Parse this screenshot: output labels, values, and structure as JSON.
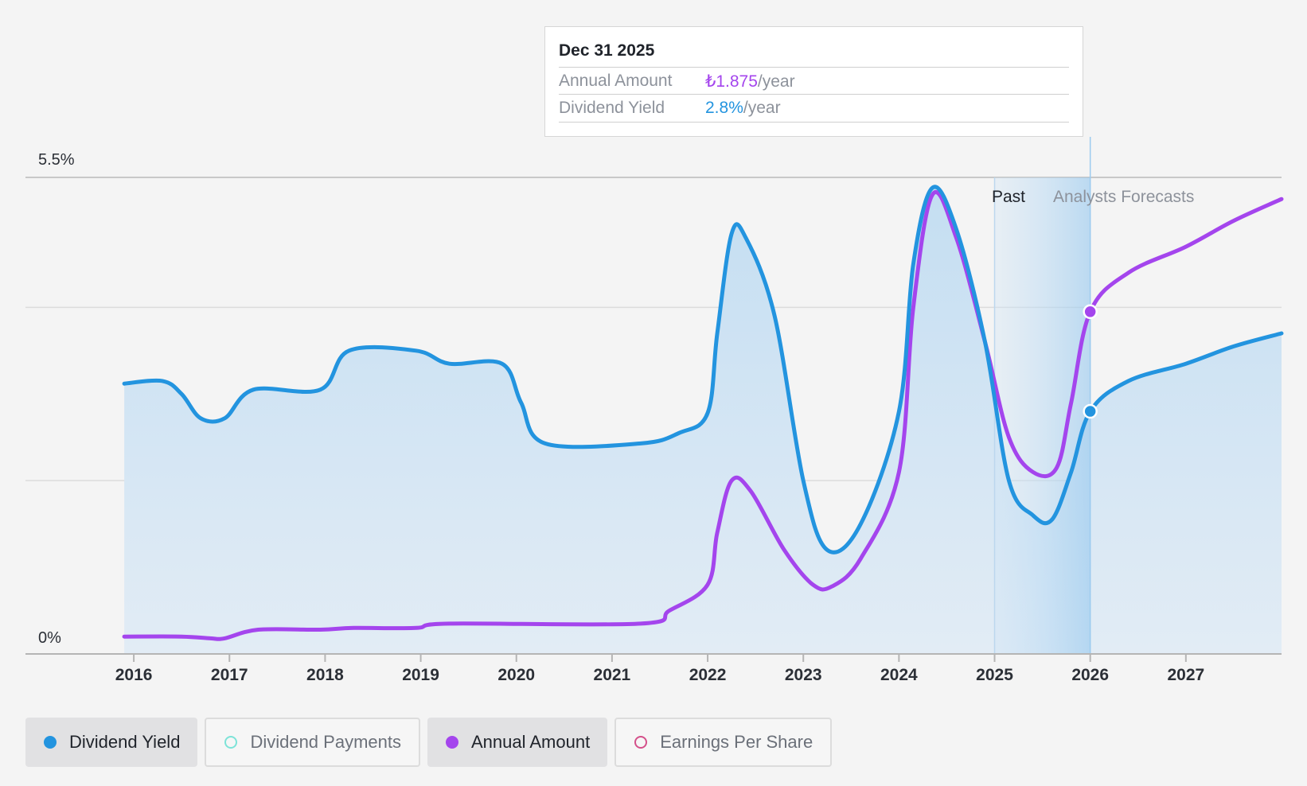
{
  "tooltip": {
    "date": "Dec 31 2025",
    "rows": [
      {
        "label": "Annual Amount",
        "value": "₺1.875",
        "unit": "/year"
      },
      {
        "label": "Dividend Yield",
        "value": "2.8%",
        "unit": "/year"
      }
    ]
  },
  "zones": {
    "past": "Past",
    "forecast": "Analysts Forecasts"
  },
  "colors": {
    "dividend_yield": "#2394df",
    "annual_amount": "#a445ed",
    "dividend_payments": "#7de3d8",
    "earnings_per_share": "#d4508a"
  },
  "legend": [
    {
      "label": "Dividend Yield",
      "active": true,
      "color": "#2394df",
      "icon": "filled-dot-icon"
    },
    {
      "label": "Dividend Payments",
      "active": false,
      "color": "#7de3d8",
      "icon": "hollow-dot-icon"
    },
    {
      "label": "Annual Amount",
      "active": true,
      "color": "#a445ed",
      "icon": "filled-dot-icon"
    },
    {
      "label": "Earnings Per Share",
      "active": false,
      "color": "#d4508a",
      "icon": "hollow-dot-icon"
    }
  ],
  "chart_data": {
    "type": "line",
    "y_tick_labels": [
      "5.5%",
      "0%"
    ],
    "ylim": [
      0,
      5.5
    ],
    "xlim": [
      2015.4,
      2028.0
    ],
    "x_ticks": [
      2016,
      2017,
      2018,
      2019,
      2020,
      2021,
      2022,
      2023,
      2024,
      2025,
      2026,
      2027
    ],
    "gridlines": [
      0,
      2,
      4,
      5.5
    ],
    "past_forecast_boundary": 2026.0,
    "past_shading_start": 2025.0,
    "highlight_x": 2026.0,
    "series": [
      {
        "name": "Dividend Yield",
        "key": "dividend_yield",
        "fill": true,
        "points": [
          [
            2015.9,
            3.12
          ],
          [
            2016.3,
            3.15
          ],
          [
            2016.5,
            3.0
          ],
          [
            2016.7,
            2.72
          ],
          [
            2016.95,
            2.72
          ],
          [
            2017.25,
            3.05
          ],
          [
            2017.95,
            3.05
          ],
          [
            2018.25,
            3.5
          ],
          [
            2018.95,
            3.5
          ],
          [
            2019.3,
            3.35
          ],
          [
            2019.85,
            3.35
          ],
          [
            2020.05,
            2.9
          ],
          [
            2020.3,
            2.43
          ],
          [
            2021.3,
            2.43
          ],
          [
            2021.7,
            2.55
          ],
          [
            2022.0,
            2.78
          ],
          [
            2022.1,
            3.7
          ],
          [
            2022.25,
            4.85
          ],
          [
            2022.4,
            4.8
          ],
          [
            2022.7,
            3.9
          ],
          [
            2023.0,
            2.0
          ],
          [
            2023.25,
            1.2
          ],
          [
            2023.6,
            1.5
          ],
          [
            2024.0,
            2.8
          ],
          [
            2024.15,
            4.5
          ],
          [
            2024.35,
            5.38
          ],
          [
            2024.6,
            4.9
          ],
          [
            2024.9,
            3.6
          ],
          [
            2025.15,
            2.0
          ],
          [
            2025.4,
            1.6
          ],
          [
            2025.6,
            1.55
          ],
          [
            2025.8,
            2.1
          ],
          [
            2026.0,
            2.8
          ],
          [
            2026.4,
            3.15
          ],
          [
            2027.0,
            3.35
          ],
          [
            2027.5,
            3.55
          ],
          [
            2028.0,
            3.7
          ]
        ]
      },
      {
        "name": "Annual Amount",
        "key": "annual_amount",
        "fill": false,
        "points": [
          [
            2015.9,
            0.2
          ],
          [
            2016.5,
            0.2
          ],
          [
            2016.8,
            0.18
          ],
          [
            2016.95,
            0.18
          ],
          [
            2017.3,
            0.28
          ],
          [
            2017.95,
            0.28
          ],
          [
            2018.3,
            0.3
          ],
          [
            2018.95,
            0.3
          ],
          [
            2019.3,
            0.35
          ],
          [
            2021.3,
            0.35
          ],
          [
            2021.6,
            0.5
          ],
          [
            2022.0,
            0.8
          ],
          [
            2022.1,
            1.4
          ],
          [
            2022.25,
            2.0
          ],
          [
            2022.45,
            1.88
          ],
          [
            2022.8,
            1.2
          ],
          [
            2023.1,
            0.8
          ],
          [
            2023.3,
            0.78
          ],
          [
            2023.6,
            1.1
          ],
          [
            2024.0,
            2.1
          ],
          [
            2024.15,
            4.0
          ],
          [
            2024.35,
            5.3
          ],
          [
            2024.6,
            4.8
          ],
          [
            2024.9,
            3.6
          ],
          [
            2025.15,
            2.5
          ],
          [
            2025.4,
            2.1
          ],
          [
            2025.65,
            2.15
          ],
          [
            2025.8,
            2.9
          ],
          [
            2026.0,
            3.95
          ],
          [
            2026.4,
            4.4
          ],
          [
            2027.0,
            4.7
          ],
          [
            2027.5,
            5.0
          ],
          [
            2028.0,
            5.25
          ]
        ]
      }
    ]
  }
}
